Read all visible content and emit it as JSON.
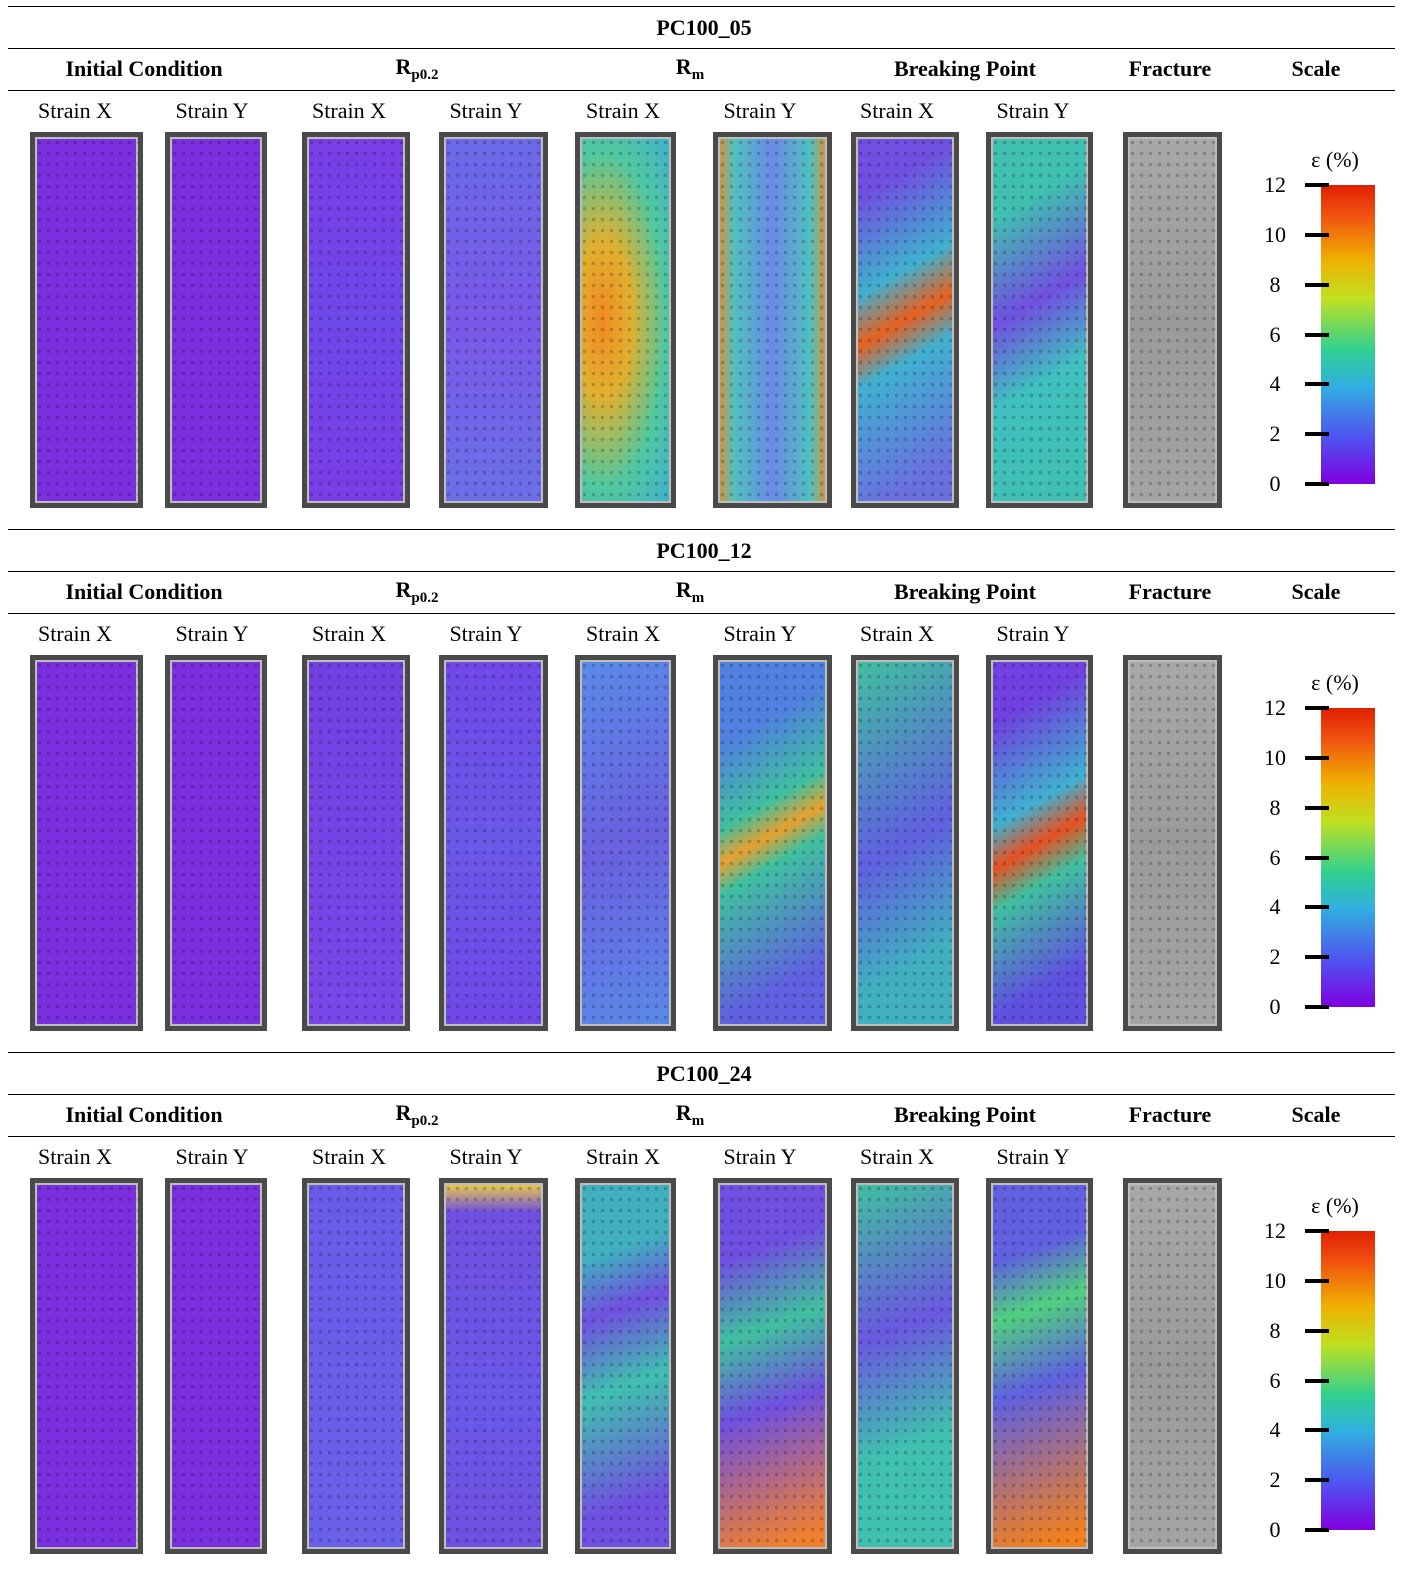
{
  "sections": [
    {
      "title": "PC100_05",
      "headers": [
        {
          "text": "Initial Condition"
        },
        {
          "text": "R",
          "sub": "p0.2"
        },
        {
          "text": "R",
          "sub": "m"
        },
        {
          "text": "Breaking Point"
        },
        {
          "text": "Fracture"
        },
        {
          "text": "Scale"
        }
      ],
      "subheaders": [
        "Strain X",
        "Strain Y",
        "Strain X",
        "Strain Y",
        "Strain X",
        "Strain Y",
        "Strain X",
        "Strain Y"
      ],
      "scale": {
        "label": "ε (%)",
        "ticks": [
          12,
          10,
          8,
          6,
          4,
          2,
          0
        ]
      }
    },
    {
      "title": "PC100_12",
      "headers": [
        {
          "text": "Initial Condition"
        },
        {
          "text": "R",
          "sub": "p0.2"
        },
        {
          "text": "R",
          "sub": "m"
        },
        {
          "text": "Breaking Point"
        },
        {
          "text": "Fracture"
        },
        {
          "text": "Scale"
        }
      ],
      "subheaders": [
        "Strain X",
        "Strain Y",
        "Strain X",
        "Strain Y",
        "Strain X",
        "Strain Y",
        "Strain X",
        "Strain Y"
      ],
      "scale": {
        "label": "ε (%)",
        "ticks": [
          12,
          10,
          8,
          6,
          4,
          2,
          0
        ]
      }
    },
    {
      "title": "PC100_24",
      "headers": [
        {
          "text": "Initial Condition"
        },
        {
          "text": "R",
          "sub": "p0.2"
        },
        {
          "text": "R",
          "sub": "m"
        },
        {
          "text": "Breaking Point"
        },
        {
          "text": "Fracture"
        },
        {
          "text": "Scale"
        }
      ],
      "subheaders": [
        "Strain X",
        "Strain Y",
        "Strain X",
        "Strain Y",
        "Strain X",
        "Strain Y",
        "Strain X",
        "Strain Y"
      ],
      "scale": {
        "label": "ε (%)",
        "ticks": [
          12,
          10,
          8,
          6,
          4,
          2,
          0
        ]
      }
    }
  ]
}
